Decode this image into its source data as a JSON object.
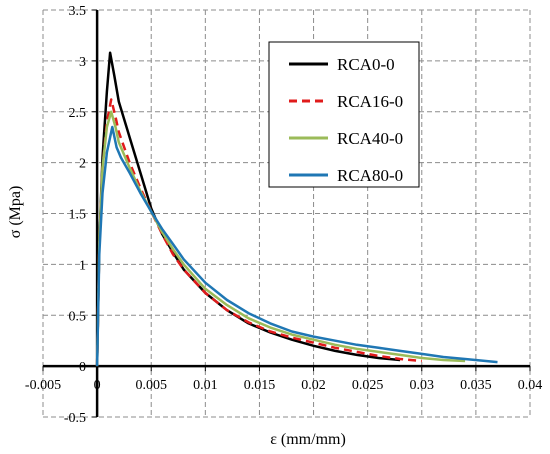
{
  "chart_data": {
    "type": "line",
    "xlabel": "ε (mm/mm)",
    "ylabel": "σ (Mpa)",
    "xlim": [
      -0.005,
      0.04
    ],
    "ylim": [
      -0.5,
      3.5
    ],
    "x_ticks": [
      "-0.005",
      "0",
      "0.005",
      "0.01",
      "0.015",
      "0.02",
      "0.025",
      "0.03",
      "0.035",
      "0.04"
    ],
    "y_ticks": [
      "-0.5",
      "0",
      "0.5",
      "1",
      "1.5",
      "2",
      "2.5",
      "3",
      "3.5"
    ],
    "grid": "dashed",
    "legend_position": "top-right",
    "series": [
      {
        "name": "RCA0-0",
        "color": "#000000",
        "dash": "solid",
        "points": [
          [
            0,
            0
          ],
          [
            0.0002,
            1.2
          ],
          [
            0.0005,
            2.05
          ],
          [
            0.0009,
            2.7
          ],
          [
            0.0012,
            3.08
          ],
          [
            0.0016,
            2.85
          ],
          [
            0.002,
            2.6
          ],
          [
            0.003,
            2.25
          ],
          [
            0.004,
            1.9
          ],
          [
            0.005,
            1.55
          ],
          [
            0.006,
            1.3
          ],
          [
            0.007,
            1.12
          ],
          [
            0.008,
            0.95
          ],
          [
            0.01,
            0.72
          ],
          [
            0.012,
            0.55
          ],
          [
            0.014,
            0.42
          ],
          [
            0.016,
            0.33
          ],
          [
            0.018,
            0.26
          ],
          [
            0.02,
            0.2
          ],
          [
            0.022,
            0.15
          ],
          [
            0.024,
            0.11
          ],
          [
            0.026,
            0.08
          ],
          [
            0.028,
            0.06
          ]
        ]
      },
      {
        "name": "RCA16-0",
        "color": "#e01b1b",
        "dash": "dashed",
        "points": [
          [
            0,
            0
          ],
          [
            0.0002,
            1.2
          ],
          [
            0.0005,
            1.95
          ],
          [
            0.0009,
            2.4
          ],
          [
            0.0013,
            2.62
          ],
          [
            0.0017,
            2.45
          ],
          [
            0.002,
            2.3
          ],
          [
            0.003,
            2.0
          ],
          [
            0.004,
            1.75
          ],
          [
            0.005,
            1.52
          ],
          [
            0.006,
            1.3
          ],
          [
            0.007,
            1.1
          ],
          [
            0.008,
            0.95
          ],
          [
            0.01,
            0.72
          ],
          [
            0.012,
            0.55
          ],
          [
            0.014,
            0.43
          ],
          [
            0.016,
            0.34
          ],
          [
            0.018,
            0.28
          ],
          [
            0.02,
            0.23
          ],
          [
            0.022,
            0.18
          ],
          [
            0.024,
            0.14
          ],
          [
            0.026,
            0.1
          ],
          [
            0.028,
            0.07
          ],
          [
            0.03,
            0.05
          ]
        ]
      },
      {
        "name": "RCA40-0",
        "color": "#9bbb59",
        "dash": "solid",
        "points": [
          [
            0,
            0
          ],
          [
            0.0002,
            1.2
          ],
          [
            0.0005,
            1.95
          ],
          [
            0.0009,
            2.35
          ],
          [
            0.0013,
            2.5
          ],
          [
            0.0017,
            2.35
          ],
          [
            0.002,
            2.2
          ],
          [
            0.003,
            1.95
          ],
          [
            0.004,
            1.72
          ],
          [
            0.005,
            1.52
          ],
          [
            0.006,
            1.32
          ],
          [
            0.007,
            1.15
          ],
          [
            0.008,
            1.0
          ],
          [
            0.01,
            0.76
          ],
          [
            0.012,
            0.6
          ],
          [
            0.014,
            0.47
          ],
          [
            0.016,
            0.38
          ],
          [
            0.018,
            0.31
          ],
          [
            0.02,
            0.26
          ],
          [
            0.022,
            0.21
          ],
          [
            0.024,
            0.17
          ],
          [
            0.026,
            0.14
          ],
          [
            0.028,
            0.11
          ],
          [
            0.03,
            0.08
          ],
          [
            0.032,
            0.06
          ],
          [
            0.034,
            0.05
          ]
        ]
      },
      {
        "name": "RCA80-0",
        "color": "#1f77b4",
        "dash": "solid",
        "points": [
          [
            0,
            0
          ],
          [
            0.0002,
            1.1
          ],
          [
            0.0005,
            1.7
          ],
          [
            0.0009,
            2.1
          ],
          [
            0.0014,
            2.35
          ],
          [
            0.0018,
            2.15
          ],
          [
            0.0022,
            2.05
          ],
          [
            0.003,
            1.9
          ],
          [
            0.004,
            1.7
          ],
          [
            0.005,
            1.52
          ],
          [
            0.006,
            1.35
          ],
          [
            0.007,
            1.2
          ],
          [
            0.008,
            1.05
          ],
          [
            0.01,
            0.82
          ],
          [
            0.012,
            0.65
          ],
          [
            0.014,
            0.52
          ],
          [
            0.016,
            0.42
          ],
          [
            0.018,
            0.34
          ],
          [
            0.02,
            0.29
          ],
          [
            0.022,
            0.25
          ],
          [
            0.024,
            0.21
          ],
          [
            0.026,
            0.18
          ],
          [
            0.028,
            0.15
          ],
          [
            0.03,
            0.12
          ],
          [
            0.032,
            0.09
          ],
          [
            0.034,
            0.07
          ],
          [
            0.037,
            0.04
          ]
        ]
      }
    ]
  }
}
